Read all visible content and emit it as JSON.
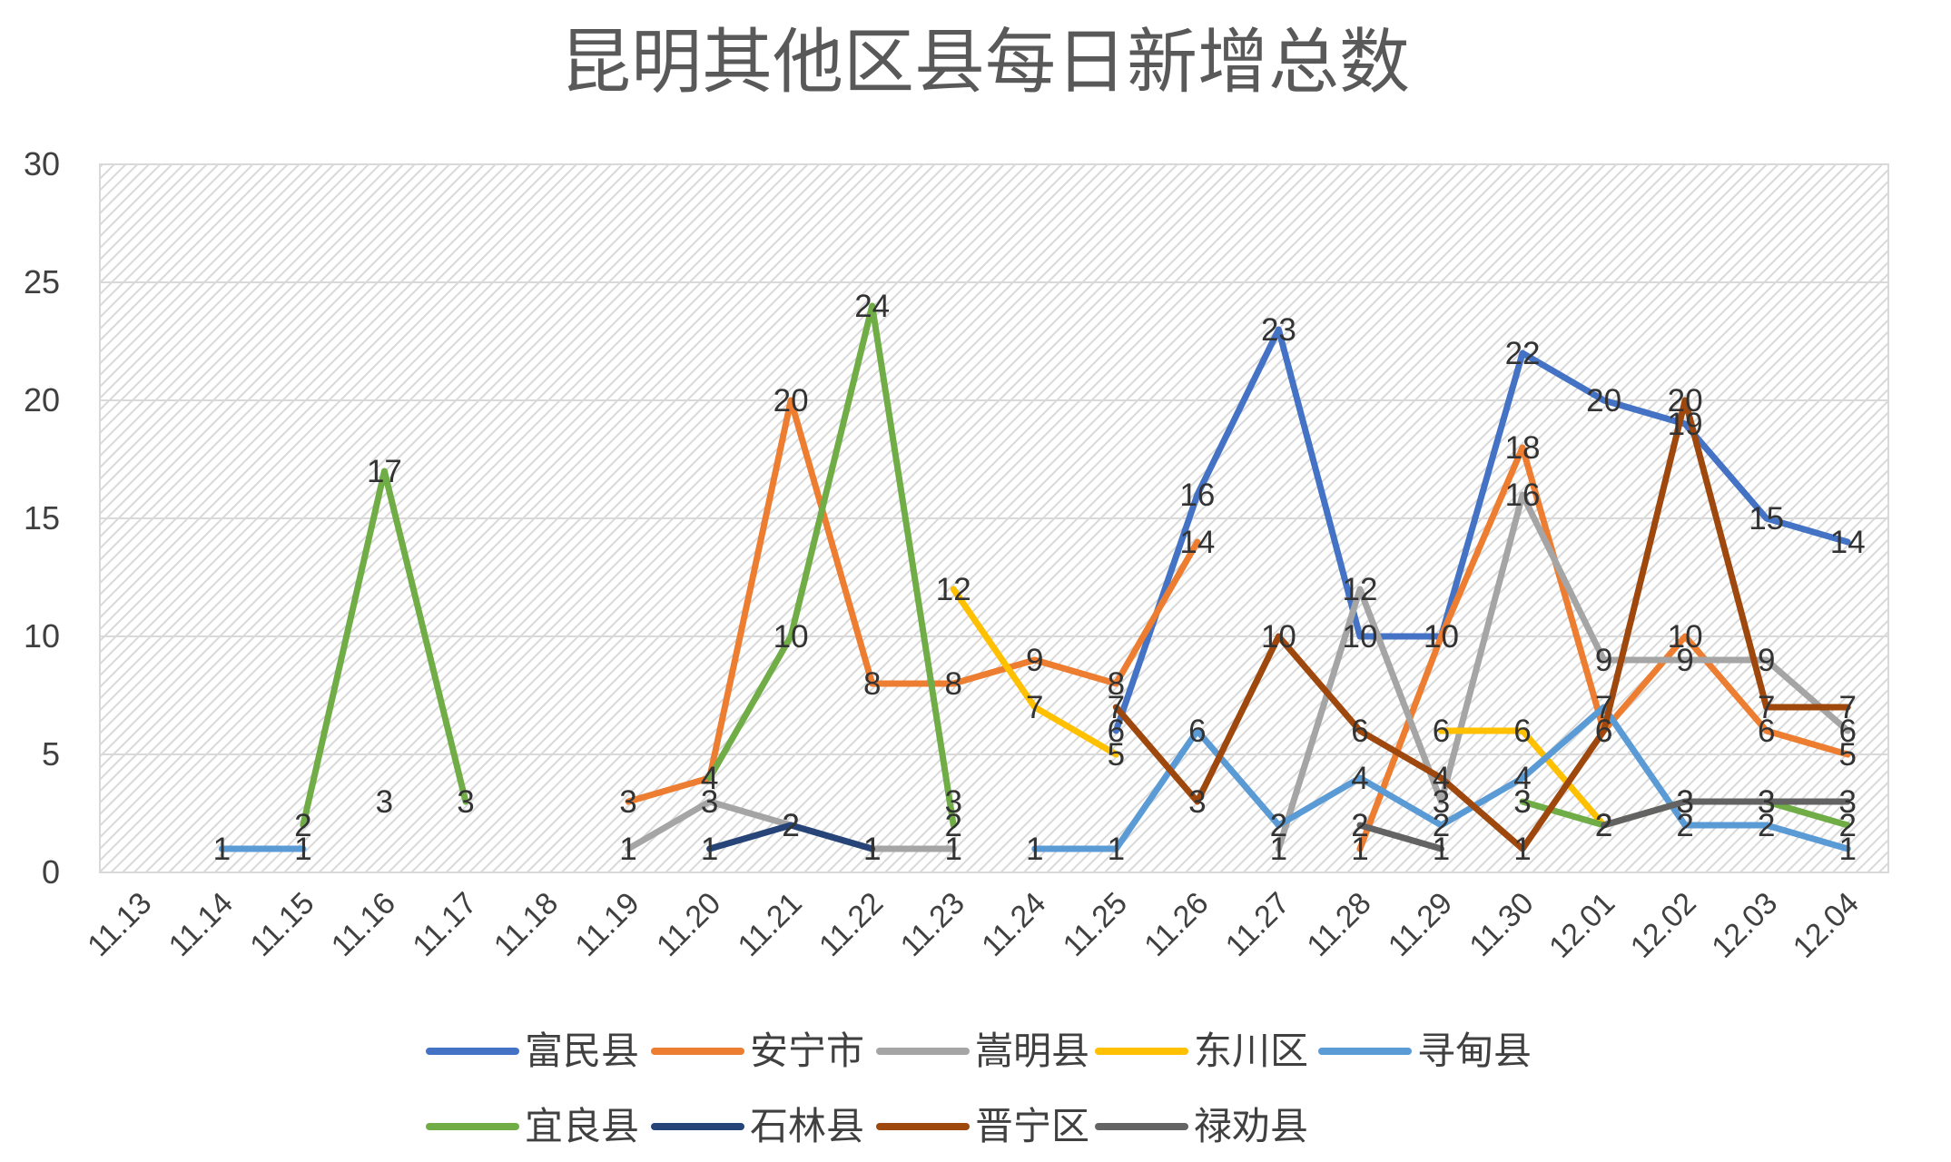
{
  "chart_data": {
    "type": "line",
    "title": "昆明其他区县每日新增总数",
    "xlabel": "",
    "ylabel": "",
    "ylim": [
      0,
      30
    ],
    "yticks": [
      0,
      5,
      10,
      15,
      20,
      25,
      30
    ],
    "grid": true,
    "legend_position": "bottom",
    "categories": [
      "11.13",
      "11.14",
      "11.15",
      "11.16",
      "11.17",
      "11.18",
      "11.19",
      "11.20",
      "11.21",
      "11.22",
      "11.23",
      "11.24",
      "11.25",
      "11.26",
      "11.27",
      "11.28",
      "11.29",
      "11.30",
      "12.01",
      "12.02",
      "12.03",
      "12.04"
    ],
    "series": [
      {
        "name": "富民县",
        "color": "#4472C4",
        "values": [
          null,
          null,
          null,
          null,
          null,
          null,
          null,
          null,
          null,
          null,
          null,
          null,
          6,
          16,
          23,
          10,
          10,
          22,
          20,
          19,
          15,
          14
        ]
      },
      {
        "name": "安宁市",
        "color": "#ED7D31",
        "values": [
          null,
          null,
          null,
          null,
          null,
          null,
          3,
          4,
          20,
          8,
          8,
          9,
          8,
          14,
          null,
          1,
          10,
          18,
          6,
          10,
          6,
          5
        ]
      },
      {
        "name": "嵩明县",
        "color": "#A5A5A5",
        "values": [
          null,
          null,
          null,
          null,
          null,
          null,
          1,
          3,
          2,
          1,
          1,
          null,
          null,
          null,
          1,
          12,
          3,
          16,
          9,
          9,
          9,
          6
        ]
      },
      {
        "name": "东川区",
        "color": "#FFC000",
        "values": [
          null,
          null,
          null,
          null,
          null,
          null,
          null,
          null,
          null,
          null,
          12,
          7,
          5,
          null,
          null,
          null,
          6,
          6,
          2,
          null,
          null,
          null
        ]
      },
      {
        "name": "寻甸县",
        "color": "#5B9BD5",
        "values": [
          null,
          1,
          1,
          null,
          null,
          null,
          null,
          null,
          null,
          null,
          null,
          1,
          1,
          6,
          2,
          4,
          2,
          4,
          7,
          2,
          2,
          1
        ]
      },
      {
        "name": "宜良县",
        "color": "#70AD47",
        "values": [
          null,
          null,
          2,
          17,
          3,
          null,
          null,
          4,
          10,
          24,
          2,
          null,
          null,
          null,
          null,
          null,
          null,
          3,
          2,
          3,
          3,
          2
        ]
      },
      {
        "name": "石林县",
        "color": "#264478",
        "values": [
          null,
          null,
          null,
          null,
          null,
          null,
          null,
          1,
          2,
          1,
          null,
          null,
          null,
          null,
          null,
          null,
          null,
          null,
          null,
          null,
          null,
          null
        ]
      },
      {
        "name": "晋宁区",
        "color": "#9E480E",
        "values": [
          null,
          null,
          null,
          null,
          null,
          null,
          null,
          null,
          null,
          null,
          null,
          null,
          7,
          3,
          10,
          6,
          4,
          1,
          6,
          20,
          7,
          7
        ]
      },
      {
        "name": "禄劝县",
        "color": "#636363",
        "values": [
          null,
          null,
          null,
          null,
          null,
          null,
          null,
          null,
          null,
          null,
          null,
          null,
          null,
          null,
          null,
          2,
          1,
          null,
          2,
          3,
          3,
          3
        ]
      }
    ],
    "extra_labels": [
      {
        "text": "3",
        "category": "11.16",
        "value": 3
      },
      {
        "text": "3",
        "category": "11.23",
        "value": 3
      }
    ]
  }
}
